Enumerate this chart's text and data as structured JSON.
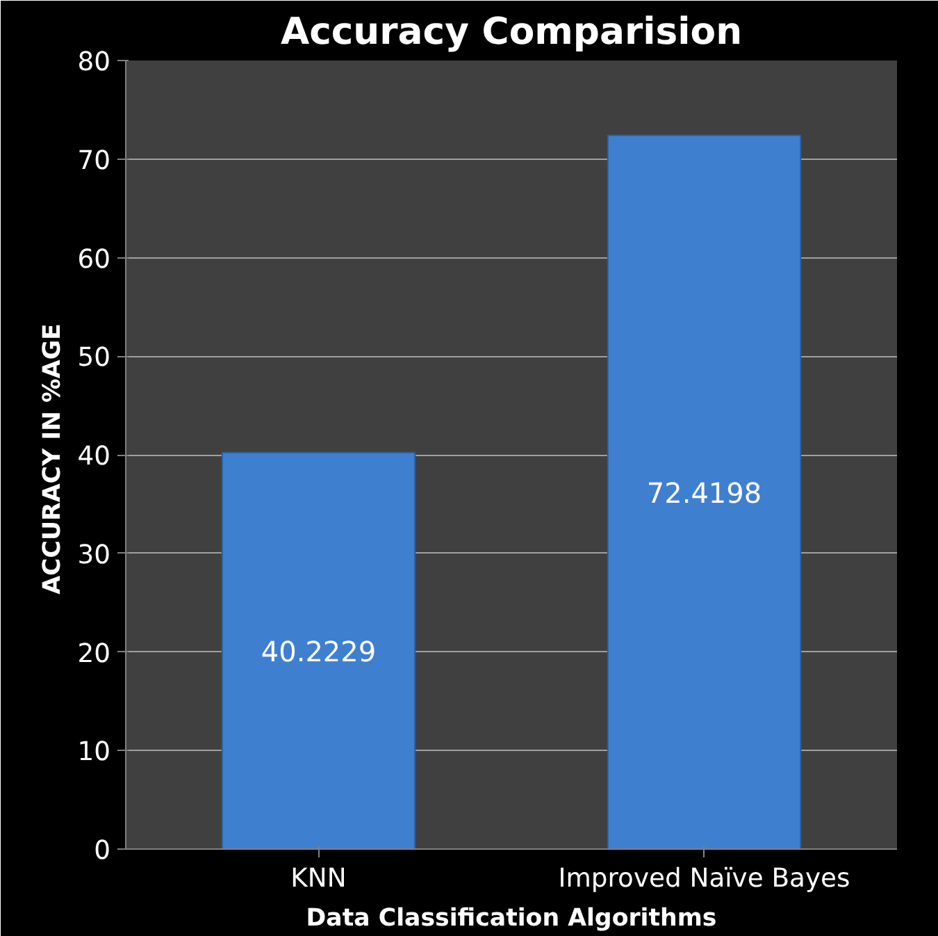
{
  "chart_data": {
    "type": "bar",
    "title": "Accuracy Comparision",
    "xlabel": "Data Classification Algorithms",
    "ylabel": "ACCURACY  IN %AGE",
    "categories": [
      "KNN",
      "Improved Naïve Bayes"
    ],
    "values": [
      40.2229,
      72.4198
    ],
    "color": "#3f7fd0",
    "ylim": [
      0,
      80
    ],
    "yticks": [
      0,
      10,
      20,
      30,
      40,
      50,
      60,
      70,
      80
    ],
    "grid": "y",
    "data_labels": true
  }
}
